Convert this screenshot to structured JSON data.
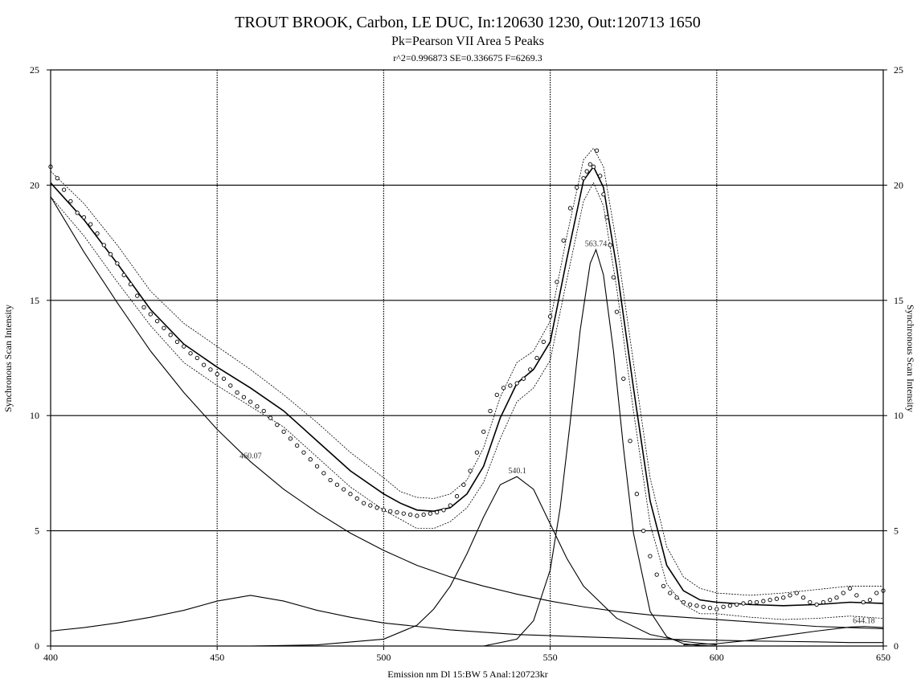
{
  "chart_data": {
    "type": "scatter",
    "title": "TROUT BROOK, Carbon, LE DUC, In:120630 1230, Out:120713 1650",
    "subtitle": "Pk=Pearson VII Area  5 Peaks",
    "stats": "r^2=0.996873  SE=0.336675  F=6269.3",
    "xlabel": "Emission nm Dl 15:BW 5 Anal:120723kr",
    "ylabel_left": "Synchronous Scan Intensity",
    "ylabel_right": "Synchronous Scan Intensity",
    "xlim": [
      400,
      650
    ],
    "ylim": [
      0,
      25
    ],
    "x_ticks": [
      "400",
      "450",
      "500",
      "550",
      "600",
      "650"
    ],
    "y_ticks": [
      "0",
      "5",
      "10",
      "15",
      "20",
      "25"
    ],
    "vertical_grid_dotted": [
      450,
      500,
      550,
      600
    ],
    "horizontal_grid_solid": [
      5,
      10,
      15,
      20
    ],
    "peak_labels": [
      {
        "x": 460.07,
        "text": "460.07"
      },
      {
        "x": 540.1,
        "text": "540.1"
      },
      {
        "x": 563.74,
        "text": "563.74"
      },
      {
        "x": 644.18,
        "text": "644.18"
      }
    ],
    "series": [
      {
        "kind": "points",
        "x": [
          400,
          402,
          404,
          406,
          408,
          410,
          412,
          414,
          416,
          418,
          420,
          422,
          424,
          426,
          428,
          430,
          432,
          434,
          436,
          438,
          440,
          442,
          444,
          446,
          448,
          450,
          452,
          454,
          456,
          458,
          460,
          462,
          464,
          466,
          468,
          470,
          472,
          474,
          476,
          478,
          480,
          482,
          484,
          486,
          488,
          490,
          492,
          494,
          496,
          498,
          500,
          502,
          504,
          506,
          508,
          510,
          512,
          514,
          516,
          518,
          520,
          522,
          524,
          526,
          528,
          530,
          532,
          534,
          536,
          538,
          540,
          542,
          544,
          546,
          548,
          550,
          552,
          554,
          556,
          558,
          560,
          561,
          562,
          563,
          564,
          565,
          566,
          567,
          568,
          569,
          570,
          572,
          574,
          576,
          578,
          580,
          582,
          584,
          586,
          588,
          590,
          592,
          594,
          596,
          598,
          600,
          602,
          604,
          606,
          608,
          610,
          612,
          614,
          616,
          618,
          620,
          622,
          624,
          626,
          628,
          630,
          632,
          634,
          636,
          638,
          640,
          642,
          644,
          646,
          648,
          650
        ],
        "y": [
          20.8,
          20.3,
          19.8,
          19.3,
          18.8,
          18.6,
          18.3,
          17.9,
          17.4,
          17.0,
          16.6,
          16.1,
          15.7,
          15.2,
          14.7,
          14.4,
          14.1,
          13.8,
          13.5,
          13.2,
          13.0,
          12.7,
          12.5,
          12.2,
          12.0,
          11.8,
          11.6,
          11.3,
          11.0,
          10.8,
          10.6,
          10.4,
          10.2,
          9.9,
          9.6,
          9.3,
          9.0,
          8.7,
          8.4,
          8.1,
          7.8,
          7.5,
          7.2,
          7.0,
          6.8,
          6.6,
          6.4,
          6.2,
          6.1,
          6.0,
          5.9,
          5.85,
          5.8,
          5.75,
          5.7,
          5.65,
          5.7,
          5.75,
          5.8,
          5.9,
          6.1,
          6.5,
          7.0,
          7.6,
          8.4,
          9.3,
          10.2,
          10.9,
          11.2,
          11.3,
          11.4,
          11.6,
          12.0,
          12.5,
          13.2,
          14.3,
          15.8,
          17.6,
          19.0,
          19.9,
          20.3,
          20.6,
          20.9,
          20.8,
          21.5,
          20.4,
          19.6,
          18.6,
          17.4,
          16.0,
          14.5,
          11.6,
          8.9,
          6.6,
          5.0,
          3.9,
          3.1,
          2.6,
          2.3,
          2.1,
          1.9,
          1.8,
          1.75,
          1.7,
          1.65,
          1.6,
          1.7,
          1.75,
          1.8,
          1.85,
          1.9,
          1.9,
          1.95,
          2.0,
          2.05,
          2.1,
          2.2,
          2.3,
          2.1,
          1.9,
          1.8,
          1.9,
          2.0,
          2.1,
          2.3,
          2.5,
          2.2,
          1.9,
          2.0,
          2.3,
          2.4
        ]
      },
      {
        "kind": "fit",
        "x": [
          400,
          410,
          420,
          430,
          440,
          450,
          460,
          470,
          480,
          490,
          500,
          505,
          510,
          515,
          520,
          525,
          530,
          535,
          540,
          545,
          550,
          555,
          560,
          563,
          566,
          570,
          575,
          580,
          585,
          590,
          595,
          600,
          610,
          620,
          630,
          640,
          650
        ],
        "y": [
          20.1,
          18.5,
          16.6,
          14.6,
          13.1,
          12.1,
          11.2,
          10.2,
          8.9,
          7.6,
          6.6,
          6.2,
          5.9,
          5.85,
          6.0,
          6.6,
          7.8,
          9.9,
          11.4,
          12.0,
          13.2,
          16.8,
          20.2,
          20.8,
          19.9,
          16.4,
          11.2,
          6.3,
          3.5,
          2.4,
          2.0,
          1.9,
          1.8,
          1.75,
          1.8,
          1.9,
          1.85
        ]
      },
      {
        "kind": "upper-band",
        "x": [
          400,
          410,
          420,
          430,
          440,
          450,
          460,
          470,
          480,
          490,
          500,
          505,
          510,
          515,
          520,
          525,
          530,
          535,
          540,
          545,
          550,
          555,
          560,
          563,
          566,
          570,
          575,
          580,
          585,
          590,
          595,
          600,
          610,
          620,
          630,
          640,
          650
        ],
        "y": [
          20.6,
          19.2,
          17.4,
          15.4,
          14.0,
          13.0,
          12.0,
          10.9,
          9.7,
          8.4,
          7.3,
          6.7,
          6.45,
          6.4,
          6.6,
          7.2,
          8.6,
          10.8,
          12.3,
          12.8,
          14.1,
          17.8,
          21.1,
          21.6,
          20.8,
          17.4,
          12.3,
          7.3,
          4.3,
          3.0,
          2.5,
          2.3,
          2.2,
          2.3,
          2.45,
          2.6,
          2.6
        ]
      },
      {
        "kind": "lower-band",
        "x": [
          400,
          410,
          420,
          430,
          440,
          450,
          460,
          470,
          480,
          490,
          500,
          505,
          510,
          515,
          520,
          525,
          530,
          535,
          540,
          545,
          550,
          555,
          560,
          563,
          566,
          570,
          575,
          580,
          585,
          590,
          595,
          600,
          610,
          620,
          630,
          640,
          650
        ],
        "y": [
          19.5,
          17.8,
          15.8,
          13.9,
          12.3,
          11.3,
          10.4,
          9.5,
          8.2,
          6.9,
          5.9,
          5.5,
          5.1,
          5.1,
          5.4,
          6.0,
          7.1,
          9.0,
          10.6,
          11.2,
          12.4,
          15.9,
          19.3,
          20.1,
          19.1,
          15.5,
          10.2,
          5.3,
          2.7,
          1.8,
          1.4,
          1.4,
          1.25,
          1.15,
          1.2,
          1.3,
          1.2
        ]
      },
      {
        "kind": "component",
        "x": [
          400,
          410,
          420,
          430,
          440,
          450,
          460,
          470,
          480,
          490,
          500,
          510,
          520,
          530,
          540,
          550,
          560,
          570,
          580,
          590,
          600,
          610,
          620,
          630,
          640,
          650
        ],
        "y": [
          19.5,
          17.1,
          14.9,
          12.8,
          11.0,
          9.4,
          8.0,
          6.8,
          5.8,
          4.9,
          4.15,
          3.5,
          3.0,
          2.6,
          2.25,
          1.95,
          1.7,
          1.5,
          1.35,
          1.25,
          1.15,
          1.05,
          0.95,
          0.85,
          0.8,
          0.75
        ]
      },
      {
        "kind": "component",
        "x": [
          400,
          410,
          420,
          430,
          440,
          450,
          460,
          470,
          480,
          490,
          500,
          510,
          520,
          530,
          540,
          550,
          560,
          570,
          580,
          590,
          600,
          610,
          620,
          630,
          640,
          650
        ],
        "y": [
          0.65,
          0.8,
          1.0,
          1.25,
          1.55,
          1.95,
          2.2,
          1.95,
          1.55,
          1.25,
          1.0,
          0.85,
          0.7,
          0.6,
          0.5,
          0.45,
          0.4,
          0.35,
          0.3,
          0.28,
          0.25,
          0.22,
          0.2,
          0.18,
          0.15,
          0.15
        ]
      },
      {
        "kind": "component",
        "x": [
          460,
          480,
          500,
          510,
          515,
          520,
          525,
          530,
          535,
          540,
          545,
          550,
          555,
          560,
          570,
          580,
          590,
          600
        ],
        "y": [
          0.0,
          0.05,
          0.3,
          0.9,
          1.6,
          2.6,
          4.0,
          5.6,
          7.0,
          7.35,
          6.8,
          5.3,
          3.8,
          2.6,
          1.2,
          0.5,
          0.2,
          0.05
        ]
      },
      {
        "kind": "component",
        "x": [
          530,
          540,
          545,
          550,
          553,
          556,
          559,
          562,
          563.74,
          566,
          569,
          572,
          575,
          580,
          585,
          590,
          595,
          600
        ],
        "y": [
          0.0,
          0.3,
          1.1,
          3.3,
          6.0,
          9.7,
          13.7,
          16.6,
          17.2,
          16.1,
          12.8,
          8.6,
          4.9,
          1.5,
          0.4,
          0.1,
          0.02,
          0.0
        ]
      },
      {
        "kind": "component",
        "x": [
          590,
          600,
          610,
          620,
          630,
          640,
          644.18,
          650
        ],
        "y": [
          0.05,
          0.1,
          0.25,
          0.45,
          0.65,
          0.82,
          0.85,
          0.8
        ]
      }
    ]
  }
}
